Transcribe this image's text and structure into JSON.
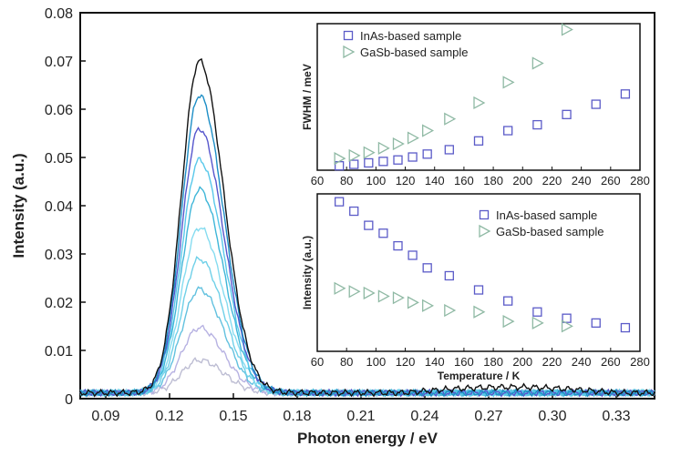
{
  "chart_data": [
    {
      "type": "line",
      "xlabel": "Photon energy / eV",
      "ylabel": "Intensity (a.u.)",
      "xlim": [
        0.078,
        0.348
      ],
      "ylim": [
        0,
        0.08
      ],
      "xticks": [
        "0.09",
        "0.12",
        "0.15",
        "0.18",
        "0.21",
        "0.24",
        "0.27",
        "0.30",
        "0.33"
      ],
      "yticks": [
        "0",
        "0.01",
        "0.02",
        "0.03",
        "0.04",
        "0.05",
        "0.06",
        "0.07",
        "0.08"
      ],
      "grid": false,
      "legend": "none",
      "peak_center": 0.134,
      "peak_fwhm": 0.024,
      "series": [
        {
          "peak": 0.0068,
          "color": "#bdbdd3"
        },
        {
          "peak": 0.0135,
          "color": "#b7b2e2"
        },
        {
          "peak": 0.0215,
          "color": "#62c1df"
        },
        {
          "peak": 0.0278,
          "color": "#6fd0e8"
        },
        {
          "peak": 0.0343,
          "color": "#86dcf0"
        },
        {
          "peak": 0.0422,
          "color": "#3fb6d8"
        },
        {
          "peak": 0.0483,
          "color": "#58c8ea"
        },
        {
          "peak": 0.0548,
          "color": "#5656cc"
        },
        {
          "peak": 0.0617,
          "color": "#1d8ec6"
        },
        {
          "peak": 0.0688,
          "color": "#111111"
        }
      ]
    },
    {
      "type": "scatter",
      "xlabel": "",
      "ylabel": "FWHM / meV",
      "xlim": [
        60,
        280
      ],
      "ylim": [
        0,
        100
      ],
      "xticks": [
        "60",
        "80",
        "100",
        "120",
        "140",
        "160",
        "180",
        "200",
        "220",
        "240",
        "260",
        "280"
      ],
      "legend": "top-left",
      "series": [
        {
          "name": "InAs-based sample",
          "marker": "square",
          "color": "#5b5bc8",
          "x": [
            75,
            85,
            95,
            105,
            115,
            125,
            135,
            150,
            170,
            190,
            210,
            230,
            250,
            270
          ],
          "y": [
            3,
            4,
            5,
            6,
            7,
            9,
            11,
            14,
            20,
            27,
            31,
            38,
            45,
            52
          ]
        },
        {
          "name": "GaSb-based sample",
          "marker": "triangle-right",
          "color": "#8fb9a4",
          "x": [
            75,
            85,
            95,
            105,
            115,
            125,
            135,
            150,
            170,
            190,
            210,
            230
          ],
          "y": [
            8,
            10,
            12,
            15,
            18,
            22,
            27,
            35,
            46,
            60,
            73,
            96
          ]
        }
      ]
    },
    {
      "type": "scatter",
      "xlabel": "Temperature / K",
      "ylabel": "Intensity (a.u.)",
      "xlim": [
        60,
        280
      ],
      "ylim": [
        0,
        100
      ],
      "xticks": [
        "60",
        "80",
        "100",
        "120",
        "140",
        "160",
        "180",
        "200",
        "220",
        "240",
        "260",
        "280"
      ],
      "legend": "top-right",
      "series": [
        {
          "name": "InAs-based sample",
          "marker": "square",
          "color": "#5b5bc8",
          "x": [
            75,
            85,
            95,
            105,
            115,
            125,
            135,
            150,
            170,
            190,
            210,
            230,
            250,
            270
          ],
          "y": [
            95,
            89,
            80,
            75,
            67,
            61,
            53,
            48,
            39,
            32,
            25,
            21,
            18,
            15
          ]
        },
        {
          "name": "GaSb-based sample",
          "marker": "triangle-right",
          "color": "#8fb9a4",
          "x": [
            75,
            85,
            95,
            105,
            115,
            125,
            135,
            150,
            170,
            190,
            210,
            230
          ],
          "y": [
            40,
            38,
            37,
            35,
            34,
            31,
            29,
            26,
            25,
            19,
            18,
            16
          ]
        }
      ]
    }
  ]
}
